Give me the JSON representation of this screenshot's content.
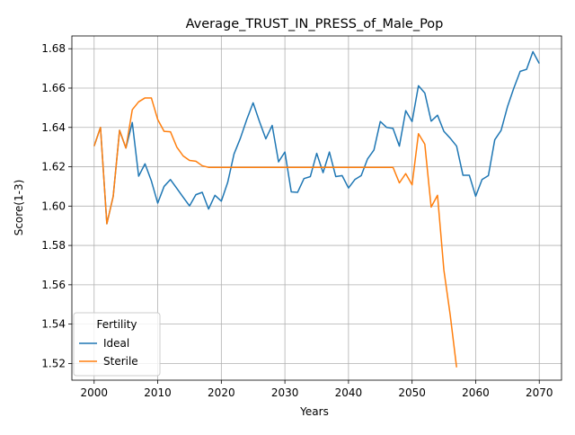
{
  "chart_data": {
    "type": "line",
    "title": "Average_TRUST_IN_PRESS_of_Male_Pop",
    "xlabel": "Years",
    "ylabel": "Score(1-3)",
    "xlim": [
      1996.5,
      2073.5
    ],
    "ylim": [
      1.5115,
      1.6865
    ],
    "x_ticks": [
      2000,
      2010,
      2020,
      2030,
      2040,
      2050,
      2060,
      2070
    ],
    "y_ticks": [
      1.52,
      1.54,
      1.56,
      1.58,
      1.6,
      1.62,
      1.64,
      1.66,
      1.68
    ],
    "grid": true,
    "legend": {
      "title": "Fertility",
      "placement": "lower-left"
    },
    "series": [
      {
        "name": "Ideal",
        "color": "#1f77b4",
        "x": [
          2000,
          2001,
          2002,
          2003,
          2004,
          2005,
          2006,
          2007,
          2008,
          2009,
          2010,
          2011,
          2012,
          2013,
          2014,
          2015,
          2016,
          2017,
          2018,
          2019,
          2020,
          2021,
          2022,
          2023,
          2024,
          2025,
          2026,
          2027,
          2028,
          2029,
          2030,
          2031,
          2032,
          2033,
          2034,
          2035,
          2036,
          2037,
          2038,
          2039,
          2040,
          2041,
          2042,
          2043,
          2044,
          2045,
          2046,
          2047,
          2048,
          2049,
          2050,
          2051,
          2052,
          2053,
          2054,
          2055,
          2056,
          2057,
          2058,
          2059,
          2060,
          2061,
          2062,
          2063,
          2064,
          2065,
          2066,
          2067,
          2068,
          2069,
          2070
        ],
        "y": [
          1.6305,
          1.64,
          1.591,
          1.605,
          1.6385,
          1.6295,
          1.6425,
          1.6152,
          1.6215,
          1.6128,
          1.6015,
          1.61,
          1.6135,
          1.609,
          1.6045,
          1.6001,
          1.6058,
          1.607,
          1.5985,
          1.6055,
          1.6025,
          1.612,
          1.6265,
          1.6345,
          1.644,
          1.6525,
          1.643,
          1.6342,
          1.641,
          1.6225,
          1.6275,
          1.6072,
          1.607,
          1.614,
          1.615,
          1.6268,
          1.617,
          1.6275,
          1.615,
          1.6155,
          1.6092,
          1.6135,
          1.6155,
          1.624,
          1.6285,
          1.643,
          1.64,
          1.6395,
          1.6305,
          1.6485,
          1.643,
          1.6612,
          1.6575,
          1.6432,
          1.6462,
          1.638,
          1.6345,
          1.6305,
          1.6157,
          1.6157,
          1.605,
          1.6135,
          1.6155,
          1.6337,
          1.6385,
          1.6505,
          1.66,
          1.6685,
          1.6695,
          1.6785,
          1.6725
        ]
      },
      {
        "name": "Sterile",
        "color": "#ff7f0e",
        "x": [
          2000,
          2001,
          2002,
          2003,
          2004,
          2005,
          2006,
          2007,
          2008,
          2009,
          2010,
          2011,
          2012,
          2013,
          2014,
          2015,
          2016,
          2017,
          2018,
          2019,
          2020,
          2021,
          2022,
          2023,
          2024,
          2025,
          2026,
          2027,
          2028,
          2029,
          2030,
          2031,
          2032,
          2033,
          2034,
          2035,
          2036,
          2037,
          2038,
          2039,
          2040,
          2041,
          2042,
          2043,
          2044,
          2045,
          2046,
          2047,
          2048,
          2049,
          2050,
          2051,
          2052,
          2053,
          2054,
          2055,
          2056,
          2057
        ],
        "y": [
          1.6305,
          1.64,
          1.591,
          1.605,
          1.6385,
          1.6295,
          1.649,
          1.653,
          1.655,
          1.655,
          1.644,
          1.638,
          1.6378,
          1.63,
          1.6255,
          1.6232,
          1.6228,
          1.6205,
          1.6197,
          1.6197,
          1.6197,
          1.6197,
          1.6197,
          1.6197,
          1.6197,
          1.6197,
          1.6197,
          1.6197,
          1.6197,
          1.6197,
          1.6197,
          1.6197,
          1.6197,
          1.6197,
          1.6197,
          1.6197,
          1.6197,
          1.6197,
          1.6197,
          1.6197,
          1.6197,
          1.6197,
          1.6197,
          1.6197,
          1.6197,
          1.6197,
          1.6197,
          1.6197,
          1.6118,
          1.6165,
          1.6108,
          1.6368,
          1.6315,
          1.5995,
          1.6055,
          1.5675,
          1.5445,
          1.518
        ]
      }
    ]
  }
}
